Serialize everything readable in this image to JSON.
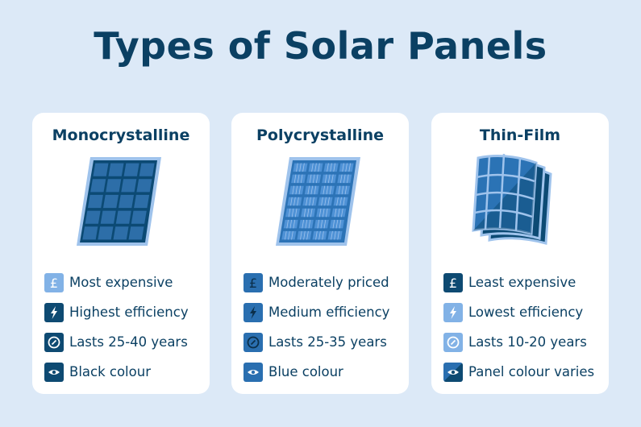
{
  "title": "Types of Solar Panels",
  "colors": {
    "dark": "#0e4a72",
    "medium": "#2a6fb0",
    "light": "#82b2e6",
    "background": "#dce9f7"
  },
  "cards": [
    {
      "title": "Monocrystalline",
      "features": [
        {
          "icon": "pound-icon",
          "text": "Most expensive"
        },
        {
          "icon": "lightning-icon",
          "text": "Highest efficiency"
        },
        {
          "icon": "clock-icon",
          "text": "Lasts 25-40 years"
        },
        {
          "icon": "eye-icon",
          "text": "Black colour"
        }
      ]
    },
    {
      "title": "Polycrystalline",
      "features": [
        {
          "icon": "pound-icon",
          "text": "Moderately priced"
        },
        {
          "icon": "lightning-icon",
          "text": "Medium efficiency"
        },
        {
          "icon": "clock-icon",
          "text": "Lasts 25-35 years"
        },
        {
          "icon": "eye-icon",
          "text": "Blue colour"
        }
      ]
    },
    {
      "title": "Thin-Film",
      "features": [
        {
          "icon": "pound-icon",
          "text": "Least expensive"
        },
        {
          "icon": "lightning-icon",
          "text": "Lowest efficiency"
        },
        {
          "icon": "clock-icon",
          "text": "Lasts 10-20 years"
        },
        {
          "icon": "eye-icon",
          "text": "Panel colour varies"
        }
      ]
    }
  ]
}
